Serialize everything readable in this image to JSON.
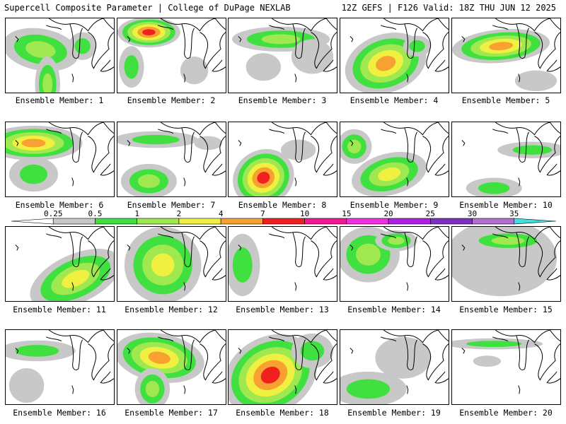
{
  "header": {
    "left": "Supercell Composite Parameter | College of DuPage NEXLAB",
    "right": "12Z GEFS | F126 Valid: 18Z THU JUN 12 2025"
  },
  "member_prefix": "Ensemble Member: ",
  "members": [
    {
      "label": "Ensemble Member: 1",
      "pattern": 1
    },
    {
      "label": "Ensemble Member: 2",
      "pattern": 2
    },
    {
      "label": "Ensemble Member: 3",
      "pattern": 3
    },
    {
      "label": "Ensemble Member: 4",
      "pattern": 4
    },
    {
      "label": "Ensemble Member: 5",
      "pattern": 5
    },
    {
      "label": "Ensemble Member: 6",
      "pattern": 6
    },
    {
      "label": "Ensemble Member: 7",
      "pattern": 7
    },
    {
      "label": "Ensemble Member: 8",
      "pattern": 8
    },
    {
      "label": "Ensemble Member: 9",
      "pattern": 9
    },
    {
      "label": "Ensemble Member: 10",
      "pattern": 10
    },
    {
      "label": "Ensemble Member: 11",
      "pattern": 11
    },
    {
      "label": "Ensemble Member: 12",
      "pattern": 12
    },
    {
      "label": "Ensemble Member: 13",
      "pattern": 13
    },
    {
      "label": "Ensemble Member: 14",
      "pattern": 14
    },
    {
      "label": "Ensemble Member: 15",
      "pattern": 15
    },
    {
      "label": "Ensemble Member: 16",
      "pattern": 16
    },
    {
      "label": "Ensemble Member: 17",
      "pattern": 17
    },
    {
      "label": "Ensemble Member: 18",
      "pattern": 18
    },
    {
      "label": "Ensemble Member: 19",
      "pattern": 19
    },
    {
      "label": "Ensemble Member: 20",
      "pattern": 20
    }
  ],
  "colorbar": {
    "labels": [
      "0.25",
      "0.5",
      "1",
      "2",
      "4",
      "7",
      "10",
      "15",
      "20",
      "25",
      "30",
      "35"
    ],
    "colors": [
      "#c8c8c8",
      "#40e040",
      "#a0e850",
      "#f0f040",
      "#f8a030",
      "#f02020",
      "#f01890",
      "#f030e0",
      "#b020e0",
      "#8030c0",
      "#b070d0",
      "#40e0e0"
    ]
  }
}
